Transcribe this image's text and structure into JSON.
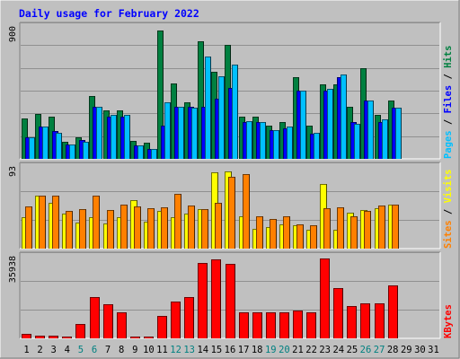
{
  "chart_data": {
    "type": "bar",
    "title": "Daily usage for February 2022",
    "categories": [
      "1",
      "2",
      "3",
      "4",
      "5",
      "6",
      "7",
      "8",
      "9",
      "10",
      "11",
      "12",
      "13",
      "14",
      "15",
      "16",
      "17",
      "18",
      "19",
      "20",
      "21",
      "22",
      "23",
      "24",
      "25",
      "26",
      "27",
      "28",
      "29",
      "30",
      "31"
    ],
    "weekend_days": [
      "5",
      "6",
      "12",
      "13",
      "19",
      "20",
      "26",
      "27"
    ],
    "panels": [
      {
        "id": "hits",
        "ylim": [
          0,
          900
        ],
        "max_tick_label": "900",
        "right_label_parts": [
          "Pages",
          "Files",
          "Hits"
        ],
        "series": [
          {
            "name": "Hits",
            "color": "#008040",
            "values": [
              280,
              310,
              290,
              120,
              150,
              430,
              330,
              330,
              125,
              110,
              880,
              520,
              390,
              810,
              600,
              780,
              290,
              290,
              230,
              250,
              560,
              230,
              510,
              510,
              360,
              620,
              300,
              400,
              0,
              0,
              0
            ]
          },
          {
            "name": "Files",
            "color": "#0000ff",
            "values": [
              150,
              220,
              190,
              100,
              130,
              360,
              290,
              290,
              90,
              70,
              230,
              360,
              360,
              360,
              410,
              490,
              250,
              250,
              200,
              210,
              470,
              170,
              470,
              560,
              250,
              400,
              250,
              350,
              0,
              0,
              0
            ]
          },
          {
            "name": "Pages",
            "color": "#00c0ff",
            "values": [
              150,
              220,
              180,
              100,
              120,
              360,
              300,
              300,
              90,
              70,
              390,
              360,
              350,
              700,
              570,
              650,
              260,
              250,
              200,
              220,
              470,
              180,
              480,
              580,
              240,
              400,
              270,
              350,
              0,
              0,
              0
            ]
          }
        ]
      },
      {
        "id": "visits",
        "ylim": [
          0,
          93
        ],
        "max_tick_label": "93",
        "right_label_parts": [
          "Sites",
          "Visits"
        ],
        "series": [
          {
            "name": "Visits",
            "color": "#ffff00",
            "values": [
              36,
              61,
              53,
              40,
              30,
              36,
              29,
              36,
              56,
              31,
              43,
              36,
              40,
              45,
              88,
              89,
              37,
              23,
              25,
              28,
              27,
              22,
              74,
              22,
              41,
              44,
              46,
              51,
              0,
              0,
              0
            ]
          },
          {
            "name": "Sites",
            "color": "#ff8000",
            "values": [
              49,
              61,
              61,
              43,
              45,
              61,
              44,
              51,
              49,
              47,
              48,
              63,
              50,
              45,
              53,
              83,
              86,
              37,
              34,
              37,
              28,
              27,
              46,
              48,
              37,
              43,
              50,
              51,
              0,
              0,
              0
            ]
          }
        ]
      },
      {
        "id": "kbytes",
        "ylim": [
          0,
          35938
        ],
        "max_tick_label": "35938",
        "right_label_parts": [
          "KBytes"
        ],
        "series": [
          {
            "name": "KBytes",
            "color": "#ff0000",
            "values": [
              1800,
              1000,
              1000,
              700,
              6500,
              18500,
              15000,
              11500,
              500,
              500,
              10000,
              16500,
              18500,
              33500,
              35000,
              33000,
              11500,
              11500,
              11500,
              11500,
              12500,
              11500,
              35500,
              22500,
              14500,
              15500,
              15500,
              23500,
              0,
              0,
              0
            ]
          }
        ]
      }
    ],
    "colors": {
      "background": "#c0c0c0",
      "title": "#0000ff",
      "grid": "#808080",
      "weekday_label": "#000000",
      "weekend_label": "#008080",
      "pages": "#00c0ff",
      "files": "#0000ff",
      "hits": "#008040",
      "sites": "#ff8000",
      "visits": "#ffff00",
      "kbytes": "#ff0000"
    }
  }
}
